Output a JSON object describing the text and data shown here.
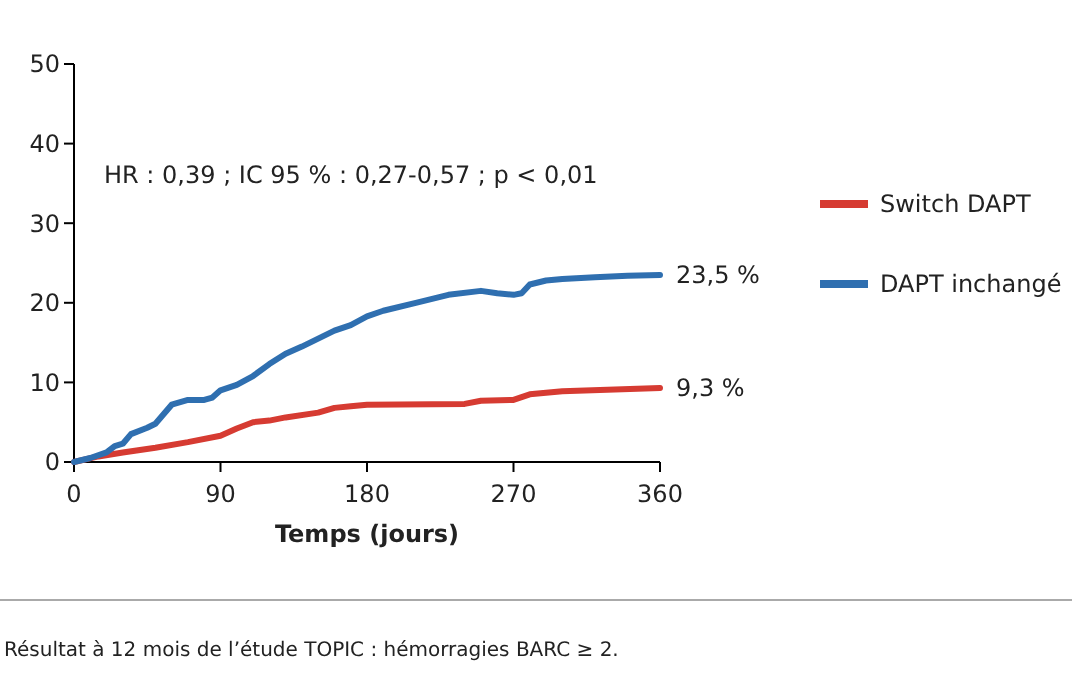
{
  "chart_data": {
    "type": "line",
    "xlabel": "Temps (jours)",
    "x": [
      0,
      10,
      20,
      25,
      30,
      35,
      45,
      50,
      55,
      60,
      70,
      80,
      85,
      90,
      100,
      110,
      120,
      130,
      140,
      150,
      160,
      170,
      180,
      190,
      210,
      230,
      250,
      260,
      270,
      275,
      280,
      290,
      300,
      320,
      340,
      360
    ],
    "series": [
      {
        "name": "Switch DAPT",
        "color": "#d63b32",
        "x": [
          0,
          15,
          30,
          50,
          70,
          90,
          100,
          110,
          120,
          130,
          150,
          160,
          170,
          180,
          240,
          250,
          270,
          280,
          300,
          360
        ],
        "values": [
          0,
          0.7,
          1.2,
          1.8,
          2.5,
          3.3,
          4.2,
          5,
          5.2,
          5.6,
          6.2,
          6.8,
          7,
          7.2,
          7.3,
          7.7,
          7.8,
          8.5,
          8.9,
          9.3
        ]
      },
      {
        "name": "DAPT inchangé",
        "color": "#2f6fb0",
        "values": [
          0,
          0.5,
          1.2,
          2,
          2.3,
          3.5,
          4.3,
          4.8,
          6,
          7.2,
          7.8,
          7.8,
          8.1,
          9,
          9.7,
          10.8,
          12.3,
          13.6,
          14.5,
          15.5,
          16.5,
          17.2,
          18.3,
          19,
          20,
          21,
          21.5,
          21.2,
          21,
          21.2,
          22.3,
          22.8,
          23,
          23.2,
          23.4,
          23.5
        ]
      }
    ],
    "xlim": [
      0,
      360
    ],
    "xticks": [
      0,
      90,
      180,
      270,
      360
    ],
    "ylim": [
      0,
      50
    ],
    "yticks": [
      0,
      10,
      20,
      30,
      40,
      50
    ],
    "grid": false,
    "legend": "right",
    "marker": "none",
    "line_style": "solid",
    "annotations": [
      "HR : 0,39 ; IC 95 % : 0,27-0,57 ; p < 0,01",
      {
        "text": "23,5 %",
        "x": 360,
        "y": 23.5
      },
      {
        "text": "9,3 %",
        "x": 360,
        "y": 9.3
      },
      "Résultat à 12 mois de l’étude TOPIC : hémorragies BARC ≥ 2."
    ]
  }
}
